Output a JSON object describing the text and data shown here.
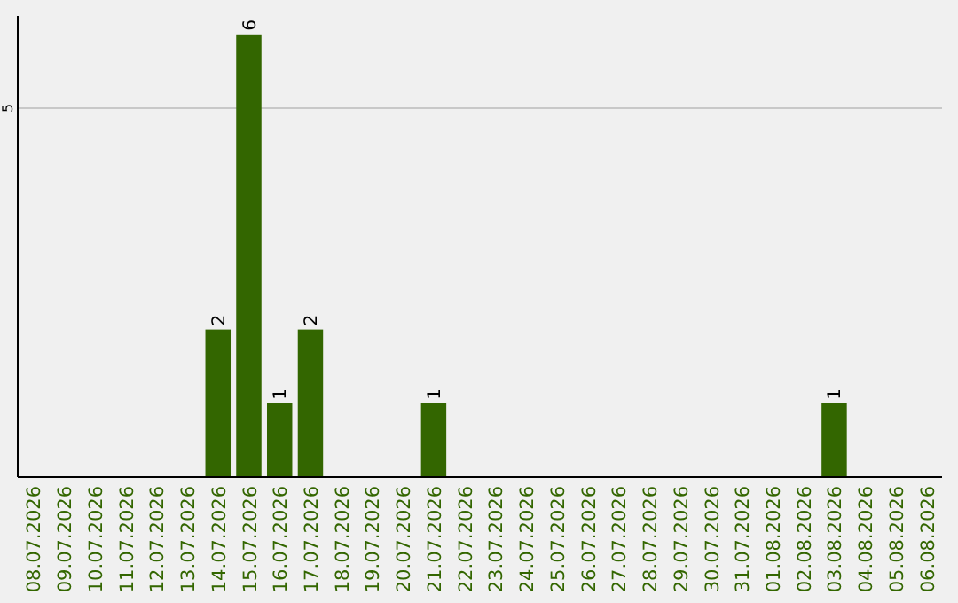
{
  "chart_data": {
    "type": "bar",
    "categories": [
      "08.07.2026",
      "09.07.2026",
      "10.07.2026",
      "11.07.2026",
      "12.07.2026",
      "13.07.2026",
      "14.07.2026",
      "15.07.2026",
      "16.07.2026",
      "17.07.2026",
      "18.07.2026",
      "19.07.2026",
      "20.07.2026",
      "21.07.2026",
      "22.07.2026",
      "23.07.2026",
      "24.07.2026",
      "25.07.2026",
      "26.07.2026",
      "27.07.2026",
      "28.07.2026",
      "29.07.2026",
      "30.07.2026",
      "31.07.2026",
      "01.08.2026",
      "02.08.2026",
      "03.08.2026",
      "04.08.2026",
      "05.08.2026",
      "06.08.2026"
    ],
    "values": [
      0,
      0,
      0,
      0,
      0,
      0,
      2,
      6,
      1,
      2,
      0,
      0,
      0,
      1,
      0,
      0,
      0,
      0,
      0,
      0,
      0,
      0,
      0,
      0,
      0,
      0,
      1,
      0,
      0,
      0
    ],
    "value_labels": [
      null,
      null,
      null,
      null,
      null,
      null,
      "2",
      "6",
      "1",
      "2",
      null,
      null,
      null,
      "1",
      null,
      null,
      null,
      null,
      null,
      null,
      null,
      null,
      null,
      null,
      null,
      null,
      "1",
      null,
      null,
      null
    ],
    "color": "#336600",
    "ylim": [
      0,
      6.25
    ],
    "yticks": [
      5
    ],
    "grid": "y"
  }
}
